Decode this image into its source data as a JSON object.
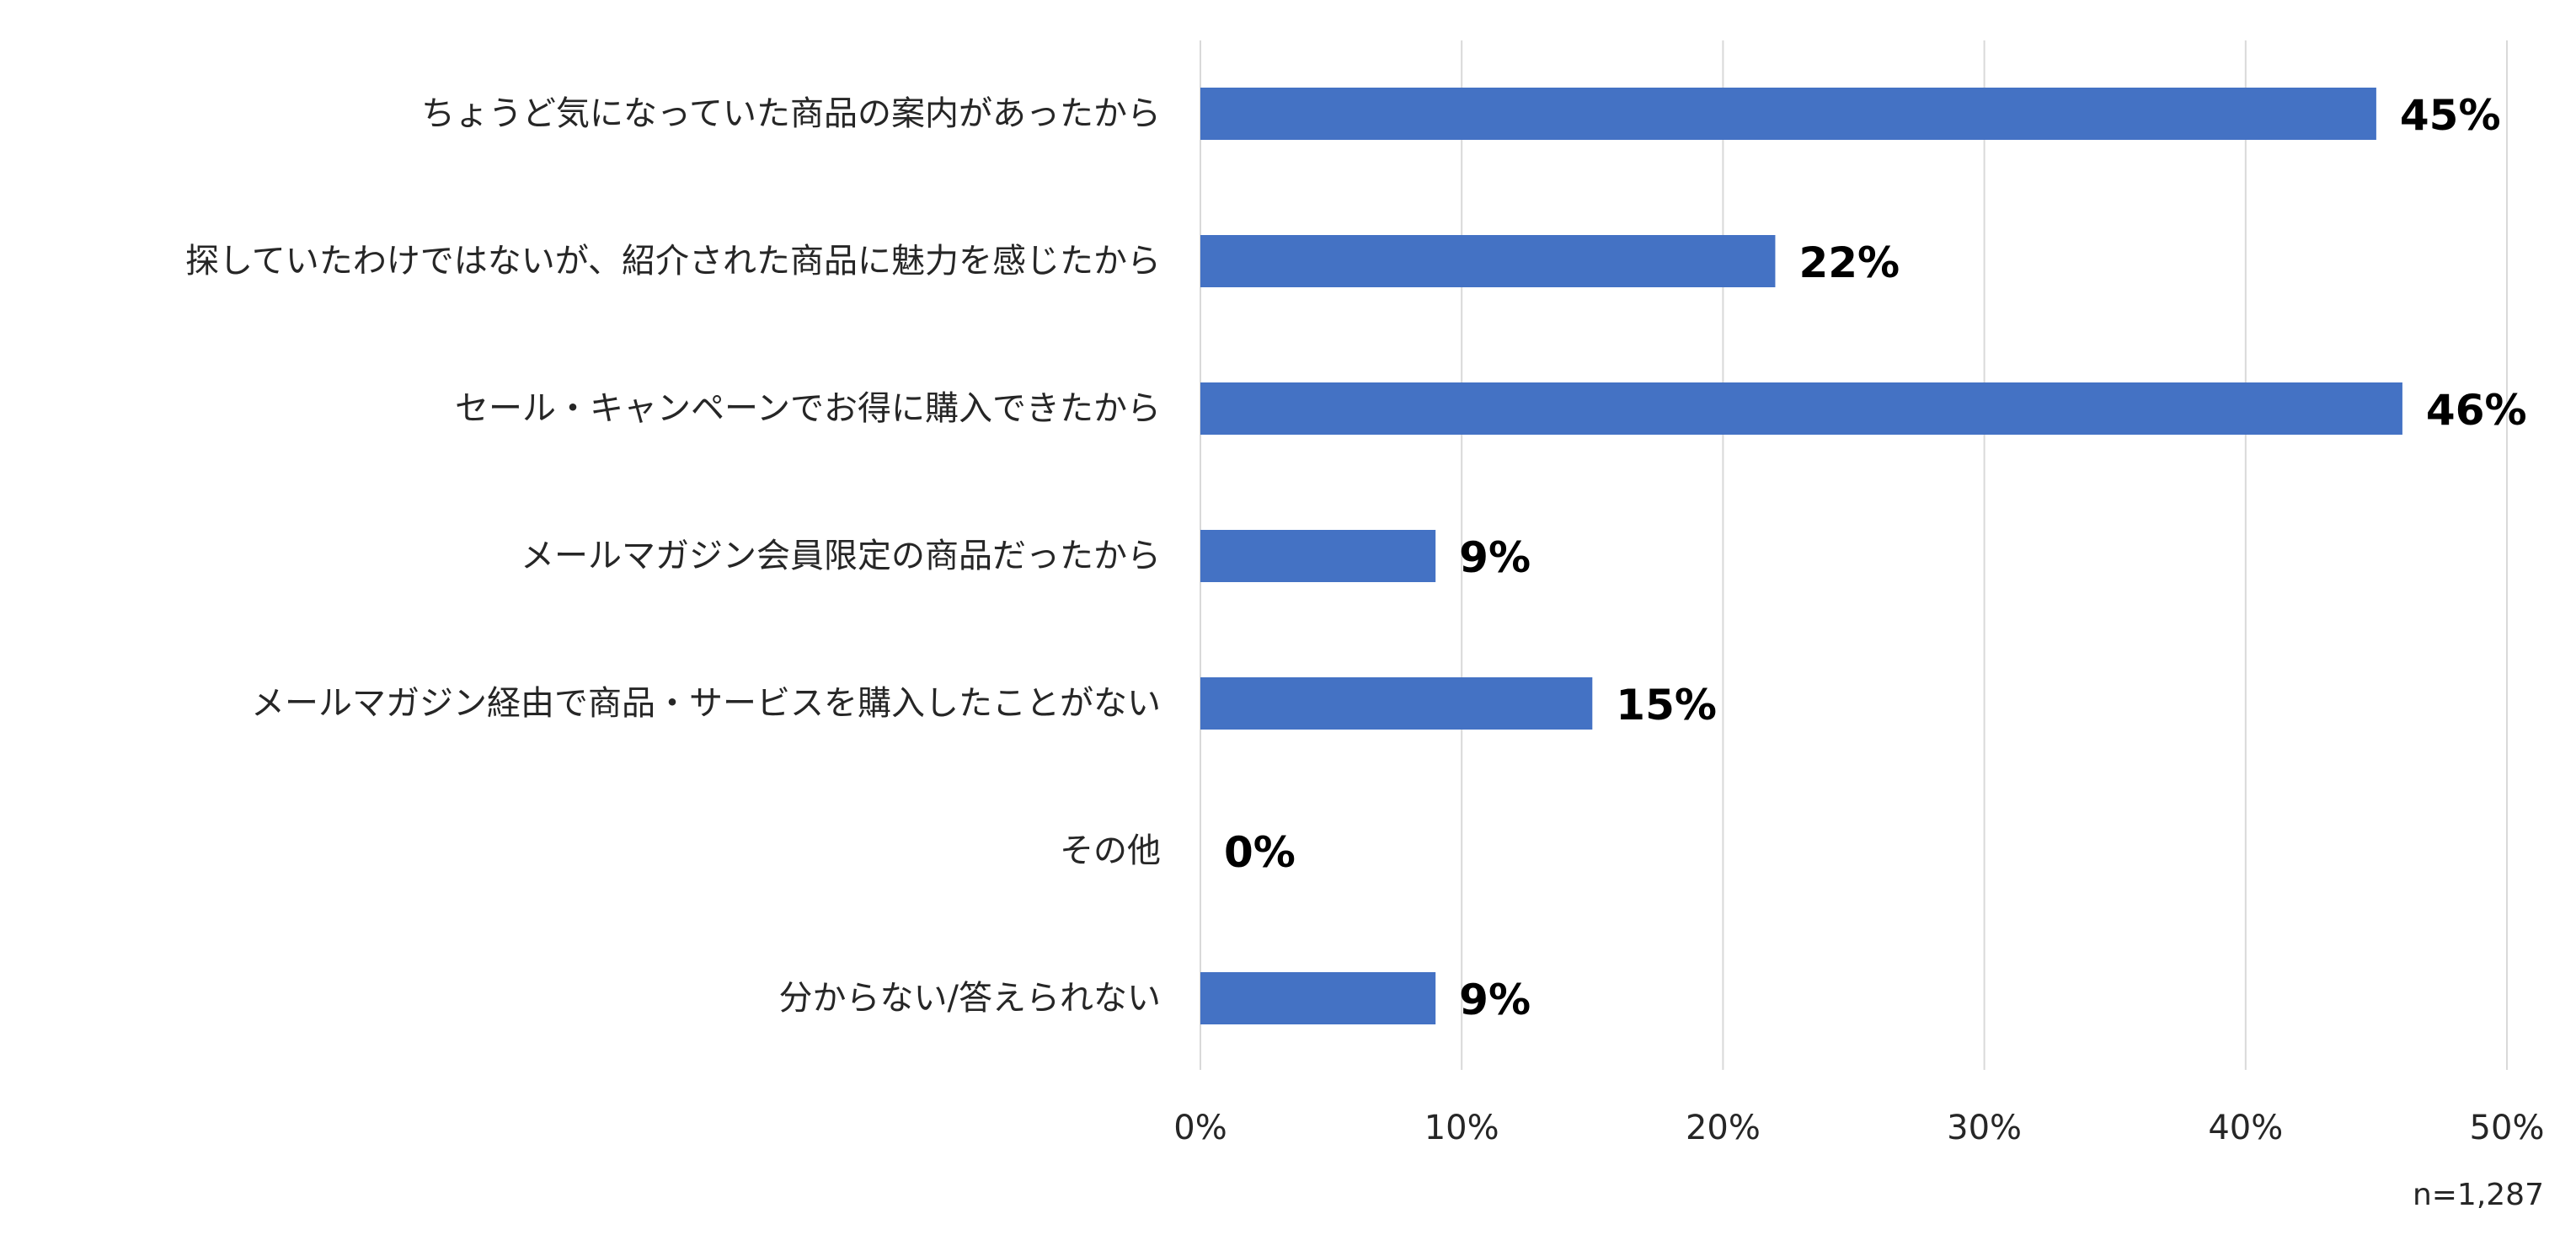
{
  "chart_data": {
    "type": "bar",
    "orientation": "horizontal",
    "categories": [
      "ちょうど気になっていた商品の案内があったから",
      "探していたわけではないが、紹介された商品に魅力を感じたから",
      "セール・キャンペーンでお得に購入できたから",
      "メールマガジン会員限定の商品だったから",
      "メールマガジン経由で商品・サービスを購入したことがない",
      "その他",
      "分からない/答えられない"
    ],
    "values": [
      45,
      22,
      46,
      9,
      15,
      0,
      9
    ],
    "value_labels": [
      "45%",
      "22%",
      "46%",
      "9%",
      "15%",
      "0%",
      "9%"
    ],
    "xlim": [
      0,
      50
    ],
    "x_ticks": [
      0,
      10,
      20,
      30,
      40,
      50
    ],
    "x_tick_labels": [
      "0%",
      "10%",
      "20%",
      "30%",
      "40%",
      "50%"
    ],
    "grid": "vertical",
    "legend": "none",
    "bar_color": "#4472C4",
    "grid_color": "#D9D9D9",
    "note": "n=1,287"
  }
}
